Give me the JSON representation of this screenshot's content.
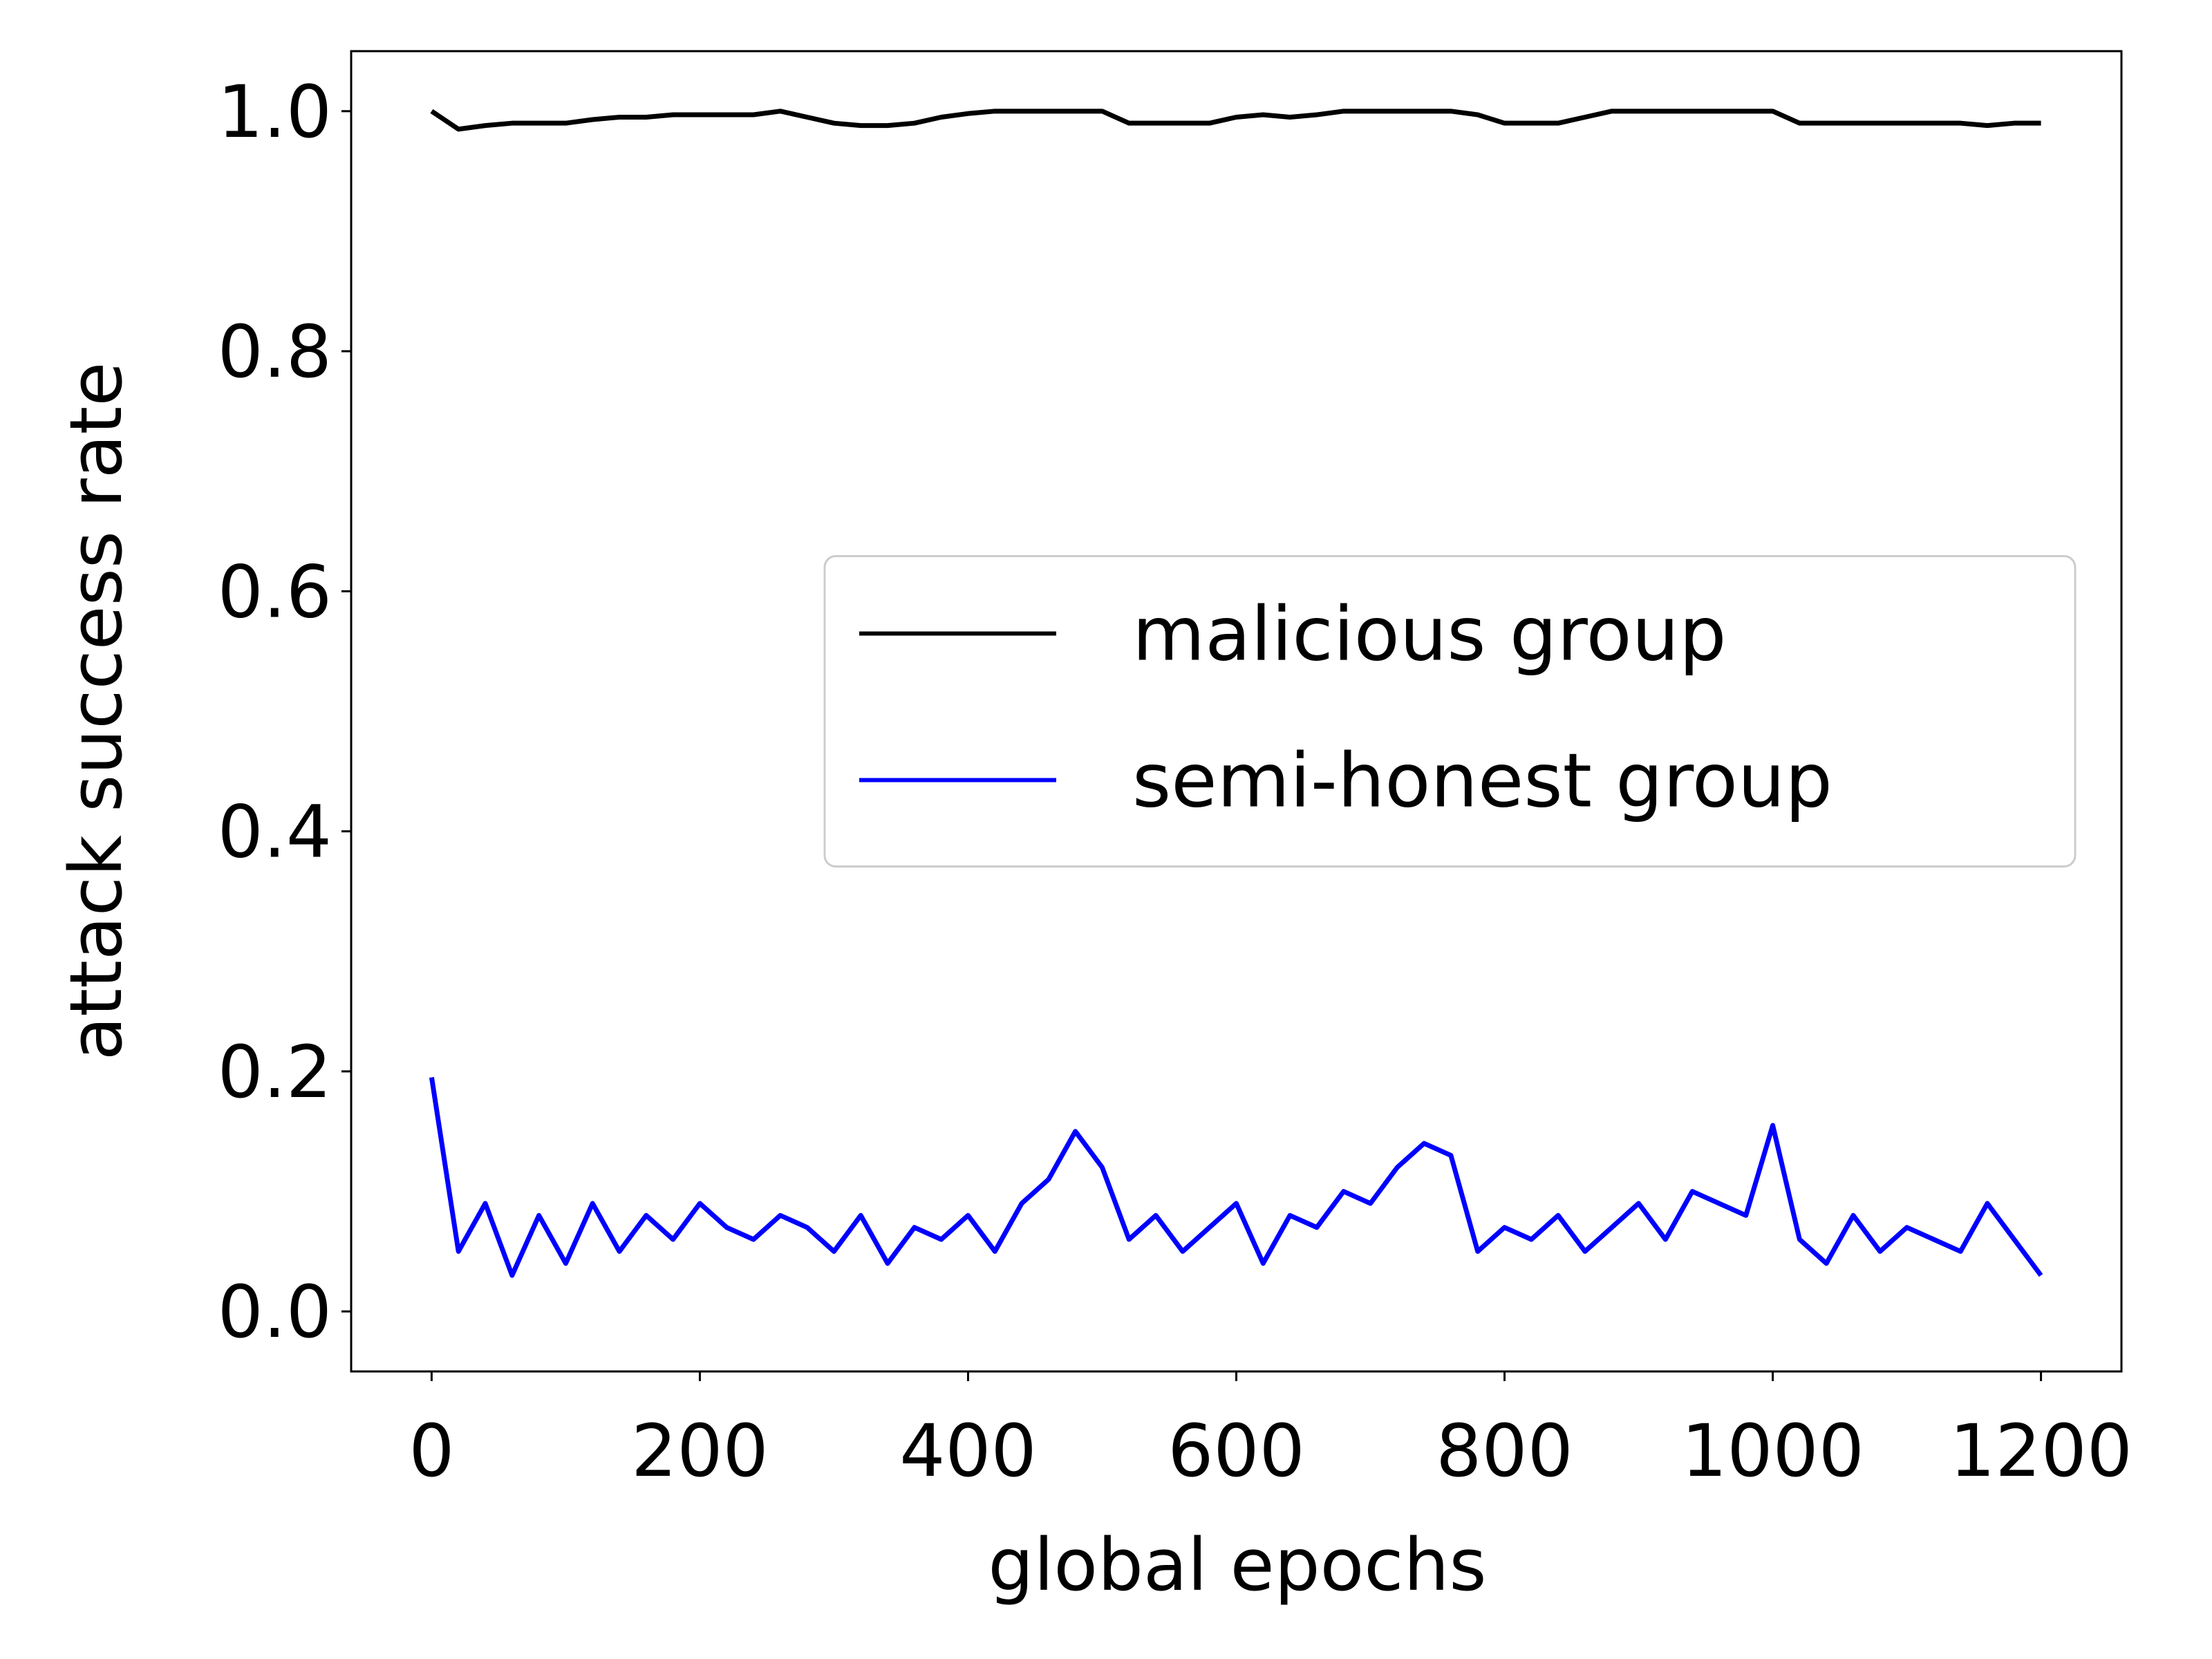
{
  "chart_data": {
    "type": "line",
    "xlabel": "global epochs",
    "ylabel": "attack success rate",
    "x": [
      0,
      20,
      40,
      60,
      80,
      100,
      120,
      140,
      160,
      180,
      200,
      220,
      240,
      260,
      280,
      300,
      320,
      340,
      360,
      380,
      400,
      420,
      440,
      460,
      480,
      500,
      520,
      540,
      560,
      580,
      600,
      620,
      640,
      660,
      680,
      700,
      720,
      740,
      760,
      780,
      800,
      820,
      840,
      860,
      880,
      900,
      920,
      940,
      960,
      980,
      1000,
      1020,
      1040,
      1060,
      1080,
      1100,
      1120,
      1140,
      1160,
      1180,
      1200
    ],
    "series": [
      {
        "name": "malicious group",
        "color": "#000000",
        "values": [
          1.0,
          0.985,
          0.988,
          0.99,
          0.99,
          0.99,
          0.993,
          0.995,
          0.995,
          0.997,
          0.997,
          0.997,
          0.997,
          1.0,
          0.995,
          0.99,
          0.988,
          0.988,
          0.99,
          0.995,
          0.998,
          1.0,
          1.0,
          1.0,
          1.0,
          1.0,
          0.99,
          0.99,
          0.99,
          0.99,
          0.995,
          0.997,
          0.995,
          0.997,
          1.0,
          1.0,
          1.0,
          1.0,
          1.0,
          0.997,
          0.99,
          0.99,
          0.99,
          0.995,
          1.0,
          1.0,
          1.0,
          1.0,
          1.0,
          1.0,
          1.0,
          0.99,
          0.99,
          0.99,
          0.99,
          0.99,
          0.99,
          0.99,
          0.988,
          0.99,
          0.99
        ]
      },
      {
        "name": "semi-honest group",
        "color": "#0000ff",
        "values": [
          0.195,
          0.05,
          0.09,
          0.03,
          0.08,
          0.04,
          0.09,
          0.05,
          0.08,
          0.06,
          0.09,
          0.07,
          0.06,
          0.08,
          0.07,
          0.05,
          0.08,
          0.04,
          0.07,
          0.06,
          0.08,
          0.05,
          0.09,
          0.11,
          0.15,
          0.12,
          0.06,
          0.08,
          0.05,
          0.07,
          0.09,
          0.04,
          0.08,
          0.07,
          0.1,
          0.09,
          0.12,
          0.14,
          0.13,
          0.05,
          0.07,
          0.06,
          0.08,
          0.05,
          0.07,
          0.09,
          0.06,
          0.1,
          0.09,
          0.08,
          0.155,
          0.06,
          0.04,
          0.08,
          0.05,
          0.07,
          0.06,
          0.05,
          0.09,
          0.06,
          0.03
        ]
      }
    ],
    "xlim": [
      -60,
      1260
    ],
    "ylim": [
      -0.05,
      1.05
    ],
    "xticks": [
      0,
      200,
      400,
      600,
      800,
      1000,
      1200
    ],
    "yticks": [
      {
        "value": 0,
        "label": "0.0"
      },
      0.2,
      0.4,
      0.6,
      0.8,
      {
        "value": 1,
        "label": "1.0"
      }
    ],
    "grid": false,
    "legend": "center right"
  }
}
